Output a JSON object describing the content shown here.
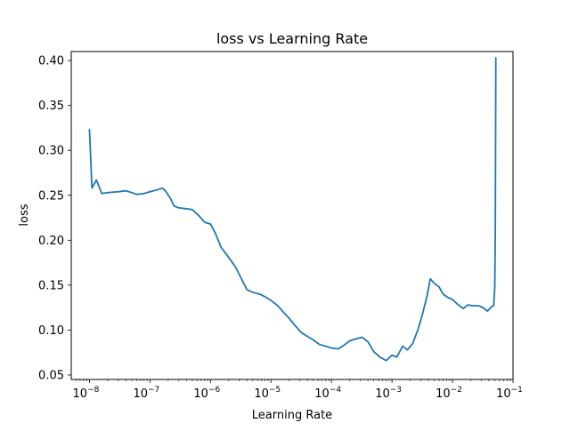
{
  "chart_data": {
    "type": "line",
    "title": "loss vs Learning Rate",
    "xlabel": "Learning Rate",
    "ylabel": "loss",
    "xscale": "log",
    "xlim": [
      5e-09,
      0.1
    ],
    "ylim": [
      0.045,
      0.41
    ],
    "grid": false,
    "legend": "none",
    "line_color": "#1f77b4",
    "x_ticks": [
      {
        "value": 1e-08,
        "base": "10",
        "exp": "−8"
      },
      {
        "value": 1e-07,
        "base": "10",
        "exp": "−7"
      },
      {
        "value": 1e-06,
        "base": "10",
        "exp": "−6"
      },
      {
        "value": 1e-05,
        "base": "10",
        "exp": "−5"
      },
      {
        "value": 0.0001,
        "base": "10",
        "exp": "−4"
      },
      {
        "value": 0.001,
        "base": "10",
        "exp": "−3"
      },
      {
        "value": 0.01,
        "base": "10",
        "exp": "−2"
      },
      {
        "value": 0.1,
        "base": "10",
        "exp": "−1"
      }
    ],
    "y_ticks": [
      {
        "value": 0.05,
        "label": "0.05"
      },
      {
        "value": 0.1,
        "label": "0.10"
      },
      {
        "value": 0.15,
        "label": "0.15"
      },
      {
        "value": 0.2,
        "label": "0.20"
      },
      {
        "value": 0.25,
        "label": "0.25"
      },
      {
        "value": 0.3,
        "label": "0.30"
      },
      {
        "value": 0.35,
        "label": "0.35"
      },
      {
        "value": 0.4,
        "label": "0.40"
      }
    ],
    "series": [
      {
        "x": [
          1e-08,
          1.1e-08,
          1.3e-08,
          1.6e-08,
          2e-08,
          3e-08,
          4e-08,
          5e-08,
          6e-08,
          8e-08,
          1e-07,
          1.3e-07,
          1.6e-07,
          1.8e-07,
          2.2e-07,
          2.5e-07,
          3e-07,
          4e-07,
          5e-07,
          6.5e-07,
          8e-07,
          1e-06,
          1.2e-06,
          1.5e-06,
          1.8e-06,
          2.2e-06,
          2.6e-06,
          3.2e-06,
          4e-06,
          5e-06,
          6.5e-06,
          8e-06,
          1e-05,
          1.3e-05,
          1.6e-05,
          2e-05,
          2.5e-05,
          3.2e-05,
          4e-05,
          5e-05,
          6.3e-05,
          8e-05,
          0.0001,
          0.00013,
          0.00016,
          0.0002,
          0.00025,
          0.00032,
          0.0004,
          0.0005,
          0.00063,
          0.0008,
          0.001,
          0.0012,
          0.0015,
          0.0018,
          0.0022,
          0.0027,
          0.0032,
          0.0038,
          0.0043,
          0.005,
          0.006,
          0.007,
          0.0085,
          0.01,
          0.012,
          0.015,
          0.018,
          0.022,
          0.027,
          0.032,
          0.038,
          0.044,
          0.048,
          0.05,
          0.051,
          0.052
        ],
        "y": [
          0.323,
          0.258,
          0.267,
          0.252,
          0.253,
          0.254,
          0.255,
          0.253,
          0.251,
          0.252,
          0.254,
          0.256,
          0.258,
          0.255,
          0.246,
          0.238,
          0.236,
          0.235,
          0.234,
          0.227,
          0.22,
          0.218,
          0.208,
          0.192,
          0.185,
          0.177,
          0.17,
          0.158,
          0.145,
          0.142,
          0.14,
          0.137,
          0.133,
          0.127,
          0.12,
          0.113,
          0.105,
          0.097,
          0.093,
          0.089,
          0.084,
          0.082,
          0.08,
          0.079,
          0.083,
          0.088,
          0.09,
          0.092,
          0.087,
          0.076,
          0.07,
          0.066,
          0.072,
          0.07,
          0.082,
          0.078,
          0.085,
          0.101,
          0.118,
          0.138,
          0.157,
          0.152,
          0.148,
          0.14,
          0.136,
          0.134,
          0.129,
          0.124,
          0.128,
          0.127,
          0.127,
          0.125,
          0.121,
          0.126,
          0.127,
          0.148,
          0.21,
          0.403
        ]
      }
    ]
  }
}
